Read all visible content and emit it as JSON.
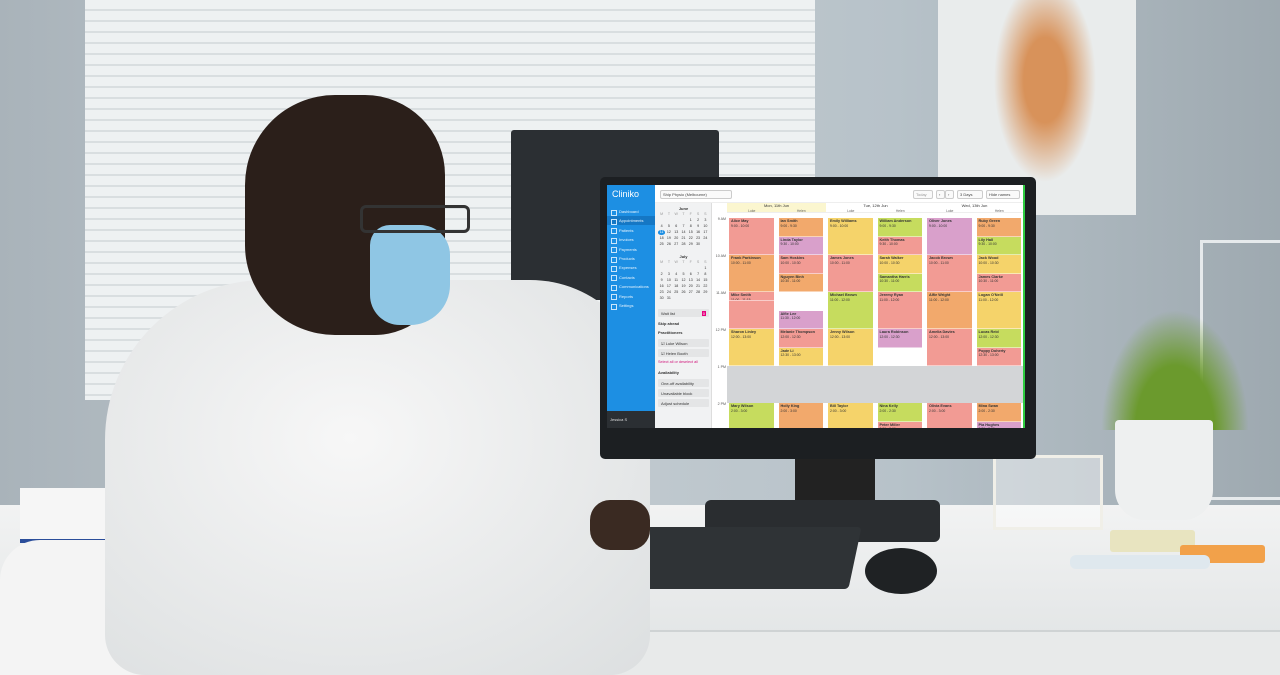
{
  "app": {
    "logo": "Cliniko",
    "location": "Ship Physio (Melbourne)",
    "today_label": "Today",
    "prev_label": "‹",
    "next_label": "›",
    "view_select": "3 Days",
    "hide_names_label": "Hide names"
  },
  "sidebar": {
    "items": [
      "Dashboard",
      "Appointments",
      "Patients",
      "Invoices",
      "Payments",
      "Products",
      "Expenses",
      "Contacts",
      "Communications",
      "Reports",
      "Settings"
    ],
    "active": "Appointments",
    "user": "Jessica S"
  },
  "mini_calendars": [
    {
      "month": "June",
      "weekdays": [
        "M",
        "T",
        "W",
        "T",
        "F",
        "S",
        "S"
      ],
      "selected_day": 11
    },
    {
      "month": "July",
      "weekdays": [
        "M",
        "T",
        "W",
        "T",
        "F",
        "S",
        "S"
      ]
    }
  ],
  "panel": {
    "wait_list": "Wait list",
    "wait_count": "0",
    "skip_ahead": "Skip ahead",
    "practitioners_title": "Practitioners",
    "practitioners": [
      "Luke Wilson",
      "Helen Booth"
    ],
    "select_all": "Select all or deselect all",
    "availability_title": "Availability",
    "availability": [
      "One-off availability",
      "Unavailable block",
      "Adjust schedule"
    ]
  },
  "calendar": {
    "days": [
      "Mon, 11th Jun",
      "Tue, 12th Jun",
      "Wed, 13th Jun"
    ],
    "practitioners": [
      "Luke",
      "Helen"
    ],
    "times": [
      "9 AM",
      "10 AM",
      "11 AM",
      "12 PM",
      "1 PM",
      "2 PM"
    ],
    "lunch": {
      "start": 13,
      "end": 14
    },
    "colors": {
      "orange": "#f2a96c",
      "pink": "#f29b94",
      "yellow": "#f5d36a",
      "green": "#c6dc5e",
      "purple": "#d9a0cb",
      "accent": "#1d8fe3"
    },
    "appointments": [
      {
        "col": 0,
        "name": "Alice May",
        "time": "9:00 - 10:00",
        "start": 9,
        "end": 10,
        "color": "pink"
      },
      {
        "col": 0,
        "name": "Frank Parkinson",
        "time": "10:00 - 11:00",
        "start": 10,
        "end": 11,
        "color": "orange"
      },
      {
        "col": 0,
        "name": "Mike Smith",
        "time": "11:00 - 11:15",
        "start": 11,
        "end": 11.25,
        "color": "pink"
      },
      {
        "col": 0,
        "name": "",
        "time": "",
        "start": 11.25,
        "end": 12,
        "color": "pink"
      },
      {
        "col": 0,
        "name": "Sharon Linley",
        "time": "12:00 - 13:00",
        "start": 12,
        "end": 13,
        "color": "yellow"
      },
      {
        "col": 0,
        "name": "Mary Wilson",
        "time": "2:00 - 3:00",
        "start": 14,
        "end": 15,
        "color": "green"
      },
      {
        "col": 0,
        "name": "Brian Kelly",
        "time": "3:00 - 3:30",
        "start": 15,
        "end": 15.5,
        "color": "pink"
      },
      {
        "col": 1,
        "name": "Ian Smith",
        "time": "9:00 - 9:30",
        "start": 9,
        "end": 9.5,
        "color": "orange"
      },
      {
        "col": 1,
        "name": "Linda Taylor",
        "time": "9:30 - 10:00",
        "start": 9.5,
        "end": 10,
        "color": "purple"
      },
      {
        "col": 1,
        "name": "Sam Hoskins",
        "time": "10:00 - 10:30",
        "start": 10,
        "end": 10.5,
        "color": "pink"
      },
      {
        "col": 1,
        "name": "Nguyen Binh",
        "time": "10:30 - 11:00",
        "start": 10.5,
        "end": 11,
        "color": "orange"
      },
      {
        "col": 1,
        "name": "Alfie Lee",
        "time": "11:30 - 12:00",
        "start": 11.5,
        "end": 12,
        "color": "purple"
      },
      {
        "col": 1,
        "name": "Melanie Thompson",
        "time": "12:00 - 12:30",
        "start": 12,
        "end": 12.5,
        "color": "pink"
      },
      {
        "col": 1,
        "name": "Jade Li",
        "time": "12:30 - 13:00",
        "start": 12.5,
        "end": 13,
        "color": "yellow"
      },
      {
        "col": 1,
        "name": "Holly King",
        "time": "2:00 - 3:00",
        "start": 14,
        "end": 15,
        "color": "orange"
      },
      {
        "col": 1,
        "name": "Mary Wilson",
        "time": "3:00 - 3:30",
        "start": 15,
        "end": 15.5,
        "color": "orange"
      },
      {
        "col": 2,
        "name": "Emily Williams",
        "time": "9:00 - 10:00",
        "start": 9,
        "end": 10,
        "color": "yellow"
      },
      {
        "col": 2,
        "name": "James Jones",
        "time": "10:00 - 11:00",
        "start": 10,
        "end": 11,
        "color": "pink"
      },
      {
        "col": 2,
        "name": "Michael Brown",
        "time": "11:00 - 12:00",
        "start": 11,
        "end": 12,
        "color": "green"
      },
      {
        "col": 2,
        "name": "Jenny Wilson",
        "time": "12:00 - 13:00",
        "start": 12,
        "end": 13,
        "color": "yellow"
      },
      {
        "col": 2,
        "name": "Bill Taylor",
        "time": "2:00 - 3:00",
        "start": 14,
        "end": 15,
        "color": "yellow"
      },
      {
        "col": 2,
        "name": "Anna White",
        "time": "3:00 - 3:30",
        "start": 15,
        "end": 15.5,
        "color": "orange"
      },
      {
        "col": 3,
        "name": "William Anderson",
        "time": "9:00 - 9:30",
        "start": 9,
        "end": 9.5,
        "color": "green"
      },
      {
        "col": 3,
        "name": "Keith Thomas",
        "time": "9:30 - 10:00",
        "start": 9.5,
        "end": 10,
        "color": "pink"
      },
      {
        "col": 3,
        "name": "Sarah Walker",
        "time": "10:00 - 10:30",
        "start": 10,
        "end": 10.5,
        "color": "yellow"
      },
      {
        "col": 3,
        "name": "Samantha Harris",
        "time": "10:30 - 11:00",
        "start": 10.5,
        "end": 11,
        "color": "green"
      },
      {
        "col": 3,
        "name": "Jeremy Ryan",
        "time": "11:00 - 12:00",
        "start": 11,
        "end": 12,
        "color": "pink"
      },
      {
        "col": 3,
        "name": "Laura Robinson",
        "time": "12:00 - 12:30",
        "start": 12,
        "end": 12.5,
        "color": "purple"
      },
      {
        "col": 3,
        "name": "Nina Kelly",
        "time": "2:00 - 2:30",
        "start": 14,
        "end": 14.5,
        "color": "green"
      },
      {
        "col": 3,
        "name": "Peter Miller",
        "time": "2:30 - 3:00",
        "start": 14.5,
        "end": 15,
        "color": "pink"
      },
      {
        "col": 3,
        "name": "Diana King",
        "time": "3:00 - 3:30",
        "start": 15,
        "end": 15.5,
        "color": "yellow"
      },
      {
        "col": 4,
        "name": "Oliver Jones",
        "time": "9:00 - 10:00",
        "start": 9,
        "end": 10,
        "color": "purple"
      },
      {
        "col": 4,
        "name": "Jacob Brown",
        "time": "10:00 - 11:00",
        "start": 10,
        "end": 11,
        "color": "pink"
      },
      {
        "col": 4,
        "name": "Alfie Wright",
        "time": "11:00 - 12:00",
        "start": 11,
        "end": 12,
        "color": "orange"
      },
      {
        "col": 4,
        "name": "Amelia Davies",
        "time": "12:00 - 13:00",
        "start": 12,
        "end": 13,
        "color": "pink"
      },
      {
        "col": 4,
        "name": "Olivia Evans",
        "time": "2:00 - 3:00",
        "start": 14,
        "end": 15,
        "color": "pink"
      },
      {
        "col": 4,
        "name": "Isla Roberts",
        "time": "3:00 - 3:30",
        "start": 15,
        "end": 15.5,
        "color": "green"
      },
      {
        "col": 5,
        "name": "Ruby Green",
        "time": "9:00 - 9:30",
        "start": 9,
        "end": 9.5,
        "color": "orange"
      },
      {
        "col": 5,
        "name": "Lily Hall",
        "time": "9:30 - 10:00",
        "start": 9.5,
        "end": 10,
        "color": "green"
      },
      {
        "col": 5,
        "name": "Jack Wood",
        "time": "10:00 - 10:30",
        "start": 10,
        "end": 10.5,
        "color": "yellow"
      },
      {
        "col": 5,
        "name": "James Clarke",
        "time": "10:30 - 11:00",
        "start": 10.5,
        "end": 11,
        "color": "pink"
      },
      {
        "col": 5,
        "name": "Logan O'Neill",
        "time": "11:00 - 12:00",
        "start": 11,
        "end": 12,
        "color": "yellow"
      },
      {
        "col": 5,
        "name": "Lucas Reid",
        "time": "12:00 - 12:30",
        "start": 12,
        "end": 12.5,
        "color": "green"
      },
      {
        "col": 5,
        "name": "Poppy Doherty",
        "time": "12:30 - 13:00",
        "start": 12.5,
        "end": 13,
        "color": "pink"
      },
      {
        "col": 5,
        "name": "Mina Swan",
        "time": "2:00 - 2:30",
        "start": 14,
        "end": 14.5,
        "color": "orange"
      },
      {
        "col": 5,
        "name": "Pia Hughes",
        "time": "2:30 - 3:00",
        "start": 14.5,
        "end": 15,
        "color": "purple"
      },
      {
        "col": 5,
        "name": "Jessica MacDonald",
        "time": "3:00 - 3:30",
        "start": 15,
        "end": 15.5,
        "color": "orange"
      }
    ]
  }
}
